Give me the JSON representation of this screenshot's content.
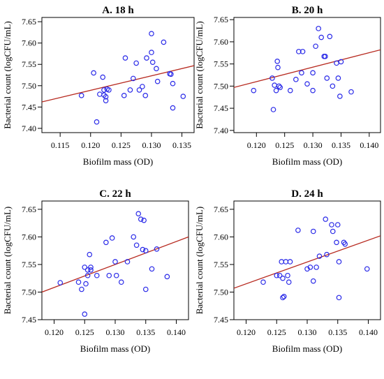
{
  "chart_data": [
    {
      "type": "scatter",
      "title": "A. 18 h",
      "xlabel": "Biofilm mass (OD)",
      "ylabel": "Bacterial count (logCFU/mL)",
      "xlim": [
        0.112,
        0.137
      ],
      "ylim": [
        7.39,
        7.66
      ],
      "xticks": [
        0.115,
        0.12,
        0.125,
        0.13,
        0.135
      ],
      "xtick_labels": [
        "0.115",
        "0.120",
        "0.125",
        "0.130",
        "0.135"
      ],
      "yticks": [
        7.4,
        7.45,
        7.5,
        7.55,
        7.6,
        7.65
      ],
      "ytick_labels": [
        "7.40",
        "7.45",
        "7.50",
        "7.55",
        "7.60",
        "7.65"
      ],
      "fit_line": {
        "x": [
          0.112,
          0.137
        ],
        "y": [
          7.462,
          7.547
        ]
      },
      "points": [
        {
          "x": 0.1185,
          "y": 7.477
        },
        {
          "x": 0.1205,
          "y": 7.53
        },
        {
          "x": 0.121,
          "y": 7.415
        },
        {
          "x": 0.1215,
          "y": 7.48
        },
        {
          "x": 0.122,
          "y": 7.52
        },
        {
          "x": 0.1222,
          "y": 7.49
        },
        {
          "x": 0.1222,
          "y": 7.478
        },
        {
          "x": 0.1225,
          "y": 7.474
        },
        {
          "x": 0.1225,
          "y": 7.465
        },
        {
          "x": 0.1227,
          "y": 7.492
        },
        {
          "x": 0.123,
          "y": 7.49
        },
        {
          "x": 0.1255,
          "y": 7.477
        },
        {
          "x": 0.1257,
          "y": 7.565
        },
        {
          "x": 0.1265,
          "y": 7.49
        },
        {
          "x": 0.127,
          "y": 7.517
        },
        {
          "x": 0.1275,
          "y": 7.553
        },
        {
          "x": 0.128,
          "y": 7.49
        },
        {
          "x": 0.1285,
          "y": 7.498
        },
        {
          "x": 0.129,
          "y": 7.477
        },
        {
          "x": 0.1292,
          "y": 7.565
        },
        {
          "x": 0.13,
          "y": 7.622
        },
        {
          "x": 0.13,
          "y": 7.578
        },
        {
          "x": 0.1302,
          "y": 7.555
        },
        {
          "x": 0.1308,
          "y": 7.54
        },
        {
          "x": 0.131,
          "y": 7.51
        },
        {
          "x": 0.132,
          "y": 7.602
        },
        {
          "x": 0.133,
          "y": 7.528
        },
        {
          "x": 0.1332,
          "y": 7.527
        },
        {
          "x": 0.1335,
          "y": 7.505
        },
        {
          "x": 0.1335,
          "y": 7.448
        },
        {
          "x": 0.1352,
          "y": 7.475
        }
      ]
    },
    {
      "type": "scatter",
      "title": "B. 20 h",
      "xlabel": "Biofilm mass (OD)",
      "ylabel": "Bacterial count (logCFU/mL)",
      "xlim": [
        0.116,
        0.142
      ],
      "ylim": [
        7.395,
        7.655
      ],
      "xticks": [
        0.12,
        0.125,
        0.13,
        0.135,
        0.14
      ],
      "xtick_labels": [
        "0.120",
        "0.125",
        "0.130",
        "0.135",
        "0.140"
      ],
      "yticks": [
        7.4,
        7.45,
        7.5,
        7.55,
        7.6,
        7.65
      ],
      "ytick_labels": [
        "7.40",
        "7.45",
        "7.50",
        "7.55",
        "7.60",
        "7.65"
      ],
      "fit_line": {
        "x": [
          0.116,
          0.142
        ],
        "y": [
          7.497,
          7.582
        ]
      },
      "points": [
        {
          "x": 0.1195,
          "y": 7.49
        },
        {
          "x": 0.1228,
          "y": 7.518
        },
        {
          "x": 0.123,
          "y": 7.447
        },
        {
          "x": 0.1232,
          "y": 7.502
        },
        {
          "x": 0.1235,
          "y": 7.49
        },
        {
          "x": 0.1237,
          "y": 7.556
        },
        {
          "x": 0.1238,
          "y": 7.542
        },
        {
          "x": 0.124,
          "y": 7.5
        },
        {
          "x": 0.1242,
          "y": 7.497
        },
        {
          "x": 0.126,
          "y": 7.49
        },
        {
          "x": 0.127,
          "y": 7.515
        },
        {
          "x": 0.1275,
          "y": 7.578
        },
        {
          "x": 0.1282,
          "y": 7.578
        },
        {
          "x": 0.128,
          "y": 7.53
        },
        {
          "x": 0.129,
          "y": 7.505
        },
        {
          "x": 0.13,
          "y": 7.53
        },
        {
          "x": 0.13,
          "y": 7.49
        },
        {
          "x": 0.1305,
          "y": 7.59
        },
        {
          "x": 0.131,
          "y": 7.63
        },
        {
          "x": 0.1315,
          "y": 7.61
        },
        {
          "x": 0.132,
          "y": 7.567
        },
        {
          "x": 0.1322,
          "y": 7.567
        },
        {
          "x": 0.1325,
          "y": 7.518
        },
        {
          "x": 0.133,
          "y": 7.612
        },
        {
          "x": 0.1335,
          "y": 7.5
        },
        {
          "x": 0.1342,
          "y": 7.552
        },
        {
          "x": 0.1345,
          "y": 7.518
        },
        {
          "x": 0.1348,
          "y": 7.477
        },
        {
          "x": 0.135,
          "y": 7.555
        },
        {
          "x": 0.1368,
          "y": 7.487
        }
      ]
    },
    {
      "type": "scatter",
      "title": "C. 22 h",
      "xlabel": "Biofilm mass (OD)",
      "ylabel": "Bacterial count (logCFU/mL)",
      "xlim": [
        0.118,
        0.142
      ],
      "ylim": [
        7.45,
        7.665
      ],
      "xticks": [
        0.12,
        0.125,
        0.13,
        0.135,
        0.14
      ],
      "xtick_labels": [
        "0.120",
        "0.125",
        "0.130",
        "0.135",
        "0.140"
      ],
      "yticks": [
        7.45,
        7.5,
        7.55,
        7.6,
        7.65
      ],
      "ytick_labels": [
        "7.45",
        "7.50",
        "7.55",
        "7.60",
        "7.65"
      ],
      "fit_line": {
        "x": [
          0.118,
          0.142
        ],
        "y": [
          7.5,
          7.6
        ]
      },
      "points": [
        {
          "x": 0.121,
          "y": 7.517
        },
        {
          "x": 0.124,
          "y": 7.518
        },
        {
          "x": 0.1245,
          "y": 7.505
        },
        {
          "x": 0.125,
          "y": 7.545
        },
        {
          "x": 0.125,
          "y": 7.46
        },
        {
          "x": 0.1252,
          "y": 7.515
        },
        {
          "x": 0.1255,
          "y": 7.53
        },
        {
          "x": 0.1255,
          "y": 7.54
        },
        {
          "x": 0.1258,
          "y": 7.568
        },
        {
          "x": 0.126,
          "y": 7.545
        },
        {
          "x": 0.126,
          "y": 7.54
        },
        {
          "x": 0.127,
          "y": 7.53
        },
        {
          "x": 0.1285,
          "y": 7.59
        },
        {
          "x": 0.129,
          "y": 7.53
        },
        {
          "x": 0.1295,
          "y": 7.598
        },
        {
          "x": 0.13,
          "y": 7.555
        },
        {
          "x": 0.1302,
          "y": 7.53
        },
        {
          "x": 0.131,
          "y": 7.518
        },
        {
          "x": 0.132,
          "y": 7.555
        },
        {
          "x": 0.133,
          "y": 7.6
        },
        {
          "x": 0.1335,
          "y": 7.585
        },
        {
          "x": 0.1338,
          "y": 7.642
        },
        {
          "x": 0.1342,
          "y": 7.632
        },
        {
          "x": 0.1345,
          "y": 7.577
        },
        {
          "x": 0.1347,
          "y": 7.63
        },
        {
          "x": 0.135,
          "y": 7.575
        },
        {
          "x": 0.135,
          "y": 7.505
        },
        {
          "x": 0.136,
          "y": 7.542
        },
        {
          "x": 0.1368,
          "y": 7.578
        },
        {
          "x": 0.1385,
          "y": 7.528
        }
      ]
    },
    {
      "type": "scatter",
      "title": "D. 24 h",
      "xlabel": "Biofilm mass (OD)",
      "ylabel": "Bacterial count (logCFU/mL)",
      "xlim": [
        0.118,
        0.142
      ],
      "ylim": [
        7.45,
        7.665
      ],
      "xticks": [
        0.12,
        0.125,
        0.13,
        0.135,
        0.14
      ],
      "xtick_labels": [
        "0.120",
        "0.125",
        "0.130",
        "0.135",
        "0.140"
      ],
      "yticks": [
        7.45,
        7.5,
        7.55,
        7.6,
        7.65
      ],
      "ytick_labels": [
        "7.45",
        "7.50",
        "7.55",
        "7.60",
        "7.65"
      ],
      "fit_line": {
        "x": [
          0.118,
          0.142
        ],
        "y": [
          7.507,
          7.602
        ]
      },
      "points": [
        {
          "x": 0.1228,
          "y": 7.518
        },
        {
          "x": 0.125,
          "y": 7.53
        },
        {
          "x": 0.1255,
          "y": 7.53
        },
        {
          "x": 0.1258,
          "y": 7.555
        },
        {
          "x": 0.126,
          "y": 7.525
        },
        {
          "x": 0.126,
          "y": 7.49
        },
        {
          "x": 0.1262,
          "y": 7.492
        },
        {
          "x": 0.1265,
          "y": 7.555
        },
        {
          "x": 0.1268,
          "y": 7.53
        },
        {
          "x": 0.127,
          "y": 7.518
        },
        {
          "x": 0.1272,
          "y": 7.555
        },
        {
          "x": 0.1285,
          "y": 7.612
        },
        {
          "x": 0.13,
          "y": 7.542
        },
        {
          "x": 0.1305,
          "y": 7.545
        },
        {
          "x": 0.131,
          "y": 7.61
        },
        {
          "x": 0.131,
          "y": 7.52
        },
        {
          "x": 0.1315,
          "y": 7.545
        },
        {
          "x": 0.132,
          "y": 7.565
        },
        {
          "x": 0.133,
          "y": 7.632
        },
        {
          "x": 0.1332,
          "y": 7.568
        },
        {
          "x": 0.134,
          "y": 7.622
        },
        {
          "x": 0.1342,
          "y": 7.61
        },
        {
          "x": 0.1348,
          "y": 7.59
        },
        {
          "x": 0.135,
          "y": 7.622
        },
        {
          "x": 0.1352,
          "y": 7.555
        },
        {
          "x": 0.1352,
          "y": 7.49
        },
        {
          "x": 0.136,
          "y": 7.59
        },
        {
          "x": 0.1362,
          "y": 7.587
        },
        {
          "x": 0.1398,
          "y": 7.542
        }
      ]
    }
  ],
  "colors": {
    "points": "#2a2ae8",
    "fit_line": "#b72a20",
    "axes": "#000000"
  }
}
